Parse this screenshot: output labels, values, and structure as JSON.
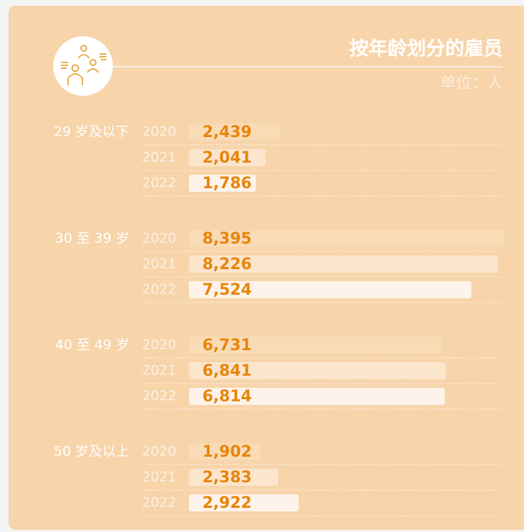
{
  "chart_data": {
    "type": "bar",
    "title": "按年龄划分的雇员",
    "subtitle": "单位：人",
    "categories": [
      "29 岁及以下",
      "30 至 39 岁",
      "40 至 49 岁",
      "50 岁及以上"
    ],
    "series": [
      {
        "name": "2020",
        "color": "#f9dbb6",
        "values": [
          2439,
          8395,
          6731,
          1902
        ],
        "value_labels": [
          "2,439",
          "8,395",
          "6,731",
          "1,902"
        ]
      },
      {
        "name": "2021",
        "color": "#fbe5cd",
        "values": [
          2041,
          8226,
          6841,
          2383
        ],
        "value_labels": [
          "2,041",
          "8,226",
          "6,841",
          "2,383"
        ]
      },
      {
        "name": "2022",
        "color": "#fdf3ea",
        "values": [
          1786,
          7524,
          6814,
          2922
        ],
        "value_labels": [
          "1,786",
          "7,524",
          "6,814",
          "2,922"
        ]
      }
    ]
  }
}
